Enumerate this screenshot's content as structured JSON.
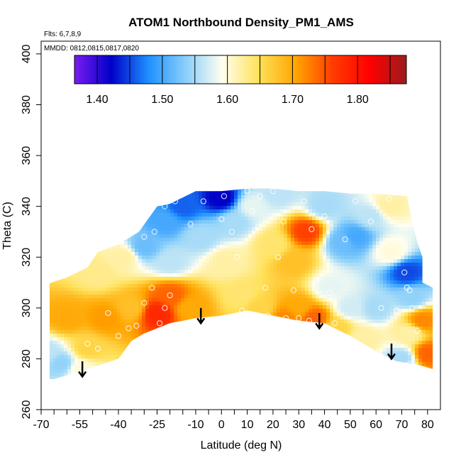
{
  "chart_data": {
    "type": "heatmap",
    "title": "ATOM1 Northbound Density_PM1_AMS",
    "flights_note": "Flts: 6,7,8,9",
    "dates_note": "MMDD: 0812,0815,0817,0820",
    "xlabel": "Latitude (deg N)",
    "ylabel": "Theta (C)",
    "xlim": [
      -70,
      85
    ],
    "ylim": [
      260,
      405
    ],
    "x_ticks": [
      -70,
      -55,
      -40,
      -25,
      -10,
      0,
      10,
      20,
      30,
      40,
      50,
      60,
      70,
      80
    ],
    "x_tick_labels": [
      "-70",
      "-55",
      "-40",
      "-25",
      "-10",
      "0",
      "10",
      "20",
      "30",
      "40",
      "50",
      "60",
      "70",
      "80"
    ],
    "x_minor_ticks": [
      -65,
      -60,
      -50,
      -45,
      -35,
      -30,
      -20,
      -15,
      -5,
      5,
      15,
      25,
      35,
      45,
      55,
      65,
      75
    ],
    "y_ticks": [
      260,
      280,
      300,
      320,
      340,
      360,
      380,
      400
    ],
    "y_tick_labels": [
      "260",
      "280",
      "300",
      "320",
      "340",
      "360",
      "380",
      "400"
    ],
    "colorbar": {
      "range": [
        1.365,
        1.875
      ],
      "ticks": [
        1.4,
        1.5,
        1.6,
        1.7,
        1.8
      ],
      "tick_labels": [
        "1.40",
        "1.50",
        "1.60",
        "1.70",
        "1.80"
      ],
      "colors": [
        "#7a1cf0",
        "#0000c8",
        "#1e90ff",
        "#87cefa",
        "#fffff0",
        "#ffe15a",
        "#ffa500",
        "#ff3c00",
        "#ff0000",
        "#9b1c1c"
      ]
    },
    "field": {
      "description_points_value_units": "density",
      "points": [
        {
          "x": -68,
          "y": 282,
          "v": 1.56
        },
        {
          "x": -62,
          "y": 278,
          "v": 1.54
        },
        {
          "x": -55,
          "y": 276,
          "v": 1.6
        },
        {
          "x": -52,
          "y": 284,
          "v": 1.66
        },
        {
          "x": -60,
          "y": 296,
          "v": 1.7
        },
        {
          "x": -45,
          "y": 296,
          "v": 1.71
        },
        {
          "x": -35,
          "y": 300,
          "v": 1.68
        },
        {
          "x": -25,
          "y": 298,
          "v": 1.78
        },
        {
          "x": -20,
          "y": 305,
          "v": 1.74
        },
        {
          "x": -12,
          "y": 300,
          "v": 1.7
        },
        {
          "x": -48,
          "y": 314,
          "v": 1.63
        },
        {
          "x": -38,
          "y": 320,
          "v": 1.62
        },
        {
          "x": -30,
          "y": 324,
          "v": 1.52
        },
        {
          "x": -22,
          "y": 334,
          "v": 1.5
        },
        {
          "x": -15,
          "y": 340,
          "v": 1.46
        },
        {
          "x": -8,
          "y": 328,
          "v": 1.55
        },
        {
          "x": -20,
          "y": 318,
          "v": 1.56
        },
        {
          "x": 0,
          "y": 343,
          "v": 1.42
        },
        {
          "x": 5,
          "y": 334,
          "v": 1.55
        },
        {
          "x": 2,
          "y": 318,
          "v": 1.62
        },
        {
          "x": 8,
          "y": 305,
          "v": 1.64
        },
        {
          "x": 15,
          "y": 300,
          "v": 1.66
        },
        {
          "x": 12,
          "y": 340,
          "v": 1.58
        },
        {
          "x": 22,
          "y": 345,
          "v": 1.56
        },
        {
          "x": 20,
          "y": 325,
          "v": 1.64
        },
        {
          "x": 28,
          "y": 318,
          "v": 1.68
        },
        {
          "x": 33,
          "y": 330,
          "v": 1.76
        },
        {
          "x": 30,
          "y": 300,
          "v": 1.7
        },
        {
          "x": 25,
          "y": 296,
          "v": 1.72
        },
        {
          "x": 40,
          "y": 340,
          "v": 1.55
        },
        {
          "x": 47,
          "y": 326,
          "v": 1.52
        },
        {
          "x": 52,
          "y": 328,
          "v": 1.5
        },
        {
          "x": 42,
          "y": 308,
          "v": 1.58
        },
        {
          "x": 50,
          "y": 300,
          "v": 1.57
        },
        {
          "x": 60,
          "y": 300,
          "v": 1.55
        },
        {
          "x": 36,
          "y": 296,
          "v": 1.74
        },
        {
          "x": 58,
          "y": 336,
          "v": 1.56
        },
        {
          "x": 65,
          "y": 340,
          "v": 1.62
        },
        {
          "x": 66,
          "y": 322,
          "v": 1.6
        },
        {
          "x": 72,
          "y": 314,
          "v": 1.45
        },
        {
          "x": 74,
          "y": 304,
          "v": 1.54
        },
        {
          "x": 73,
          "y": 290,
          "v": 1.62
        },
        {
          "x": 78,
          "y": 295,
          "v": 1.72
        },
        {
          "x": 80,
          "y": 282,
          "v": 1.74
        },
        {
          "x": 70,
          "y": 280,
          "v": 1.55
        },
        {
          "x": 55,
          "y": 288,
          "v": 1.62
        },
        {
          "x": 45,
          "y": 292,
          "v": 1.66
        }
      ],
      "boundary": [
        [
          -70,
          272
        ],
        [
          -65,
          272
        ],
        [
          -52,
          276
        ],
        [
          -40,
          280
        ],
        [
          -35,
          287
        ],
        [
          -30,
          290
        ],
        [
          -20,
          294
        ],
        [
          -10,
          296
        ],
        [
          0,
          297
        ],
        [
          10,
          299
        ],
        [
          20,
          297
        ],
        [
          30,
          295
        ],
        [
          40,
          294
        ],
        [
          50,
          289
        ],
        [
          60,
          283
        ],
        [
          68,
          279
        ],
        [
          75,
          278
        ],
        [
          82,
          276
        ],
        [
          82,
          308
        ],
        [
          78,
          310
        ],
        [
          78,
          320
        ],
        [
          76,
          326
        ],
        [
          74,
          334
        ],
        [
          72,
          344
        ],
        [
          60,
          345
        ],
        [
          50,
          345
        ],
        [
          40,
          346
        ],
        [
          30,
          346
        ],
        [
          20,
          347
        ],
        [
          10,
          347
        ],
        [
          0,
          346
        ],
        [
          -10,
          346
        ],
        [
          -20,
          341
        ],
        [
          -25,
          340
        ],
        [
          -32,
          330
        ],
        [
          -40,
          325
        ],
        [
          -48,
          322
        ],
        [
          -52,
          316
        ],
        [
          -60,
          312
        ],
        [
          -66,
          310
        ],
        [
          -70,
          308
        ]
      ]
    },
    "obs_points": [
      [
        -68,
        288
      ],
      [
        -55,
        277
      ],
      [
        -52,
        286
      ],
      [
        -48,
        284
      ],
      [
        -44,
        298
      ],
      [
        -40,
        289
      ],
      [
        -36,
        292
      ],
      [
        -33,
        293
      ],
      [
        -30,
        302
      ],
      [
        -27,
        308
      ],
      [
        -24,
        294
      ],
      [
        -22,
        300
      ],
      [
        -20,
        305
      ],
      [
        -30,
        328
      ],
      [
        -26,
        330
      ],
      [
        -22,
        340
      ],
      [
        -18,
        342
      ],
      [
        -12,
        333
      ],
      [
        -7,
        342
      ],
      [
        0,
        335
      ],
      [
        1,
        344
      ],
      [
        4,
        330
      ],
      [
        6,
        320
      ],
      [
        8,
        299
      ],
      [
        10,
        346
      ],
      [
        12,
        338
      ],
      [
        15,
        344
      ],
      [
        17,
        308
      ],
      [
        18,
        297
      ],
      [
        20,
        346
      ],
      [
        22,
        320
      ],
      [
        24,
        334
      ],
      [
        25,
        296
      ],
      [
        28,
        307
      ],
      [
        30,
        296
      ],
      [
        32,
        342
      ],
      [
        34,
        295
      ],
      [
        35,
        331
      ],
      [
        37,
        311
      ],
      [
        40,
        336
      ],
      [
        42,
        306
      ],
      [
        44,
        294
      ],
      [
        48,
        327
      ],
      [
        52,
        342
      ],
      [
        58,
        334
      ],
      [
        62,
        300
      ],
      [
        65,
        343
      ],
      [
        68,
        299
      ],
      [
        71,
        314
      ],
      [
        72,
        308
      ],
      [
        73,
        307
      ],
      [
        73,
        278
      ],
      [
        74,
        300
      ],
      [
        76,
        291
      ]
    ],
    "arrows": [
      {
        "x": -54,
        "y_from": 279,
        "y_to": 273
      },
      {
        "x": -8,
        "y_from": 300,
        "y_to": 294
      },
      {
        "x": 38,
        "y_from": 298,
        "y_to": 292
      },
      {
        "x": 66,
        "y_from": 286,
        "y_to": 280
      }
    ]
  }
}
